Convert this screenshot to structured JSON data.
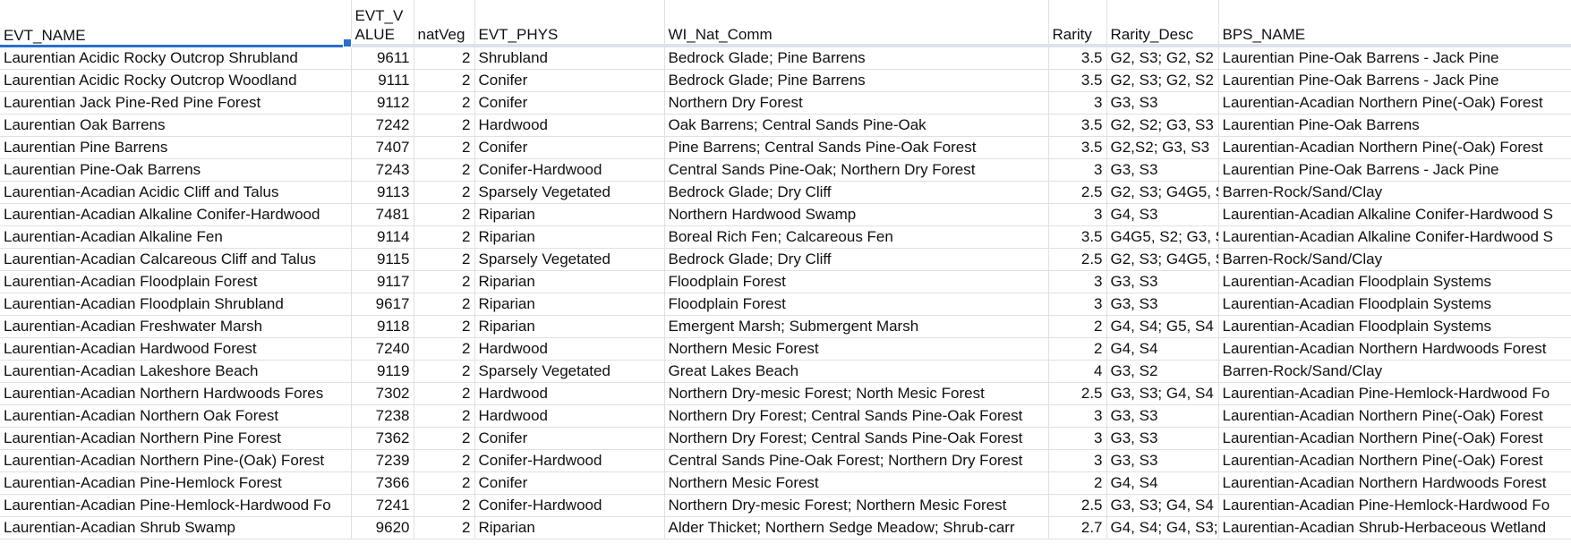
{
  "columns": [
    "EVT_NAME",
    "EVT_VALUE",
    "natVeg",
    "EVT_PHYS",
    "WI_Nat_Comm",
    "Rarity",
    "Rarity_Desc",
    "BPS_NAME"
  ],
  "rows": [
    [
      "Laurentian Acidic Rocky Outcrop Shrubland",
      "9611",
      "2",
      "Shrubland",
      "Bedrock Glade; Pine Barrens",
      "3.5",
      "G2, S3; G2, S2",
      "Laurentian Pine-Oak Barrens - Jack Pine"
    ],
    [
      "Laurentian Acidic Rocky Outcrop Woodland",
      "9111",
      "2",
      "Conifer",
      "Bedrock Glade; Pine Barrens",
      "3.5",
      "G2, S3; G2, S2",
      "Laurentian Pine-Oak Barrens - Jack Pine"
    ],
    [
      "Laurentian Jack Pine-Red Pine Forest",
      "9112",
      "2",
      "Conifer",
      "Northern Dry Forest",
      "3",
      "G3, S3",
      "Laurentian-Acadian Northern Pine(-Oak) Forest"
    ],
    [
      "Laurentian Oak Barrens",
      "7242",
      "2",
      "Hardwood",
      "Oak Barrens; Central Sands Pine-Oak",
      "3.5",
      "G2, S2; G3, S3",
      "Laurentian Pine-Oak Barrens"
    ],
    [
      "Laurentian Pine Barrens",
      "7407",
      "2",
      "Conifer",
      "Pine Barrens; Central Sands Pine-Oak Forest",
      "3.5",
      "G2,S2; G3, S3",
      "Laurentian-Acadian Northern Pine(-Oak) Forest"
    ],
    [
      "Laurentian Pine-Oak Barrens",
      "7243",
      "2",
      "Conifer-Hardwood",
      "Central Sands Pine-Oak; Northern Dry Forest",
      "3",
      "G3, S3",
      "Laurentian Pine-Oak Barrens - Jack Pine"
    ],
    [
      "Laurentian-Acadian Acidic Cliff and Talus",
      "9113",
      "2",
      "Sparsely Vegetated",
      "Bedrock Glade; Dry Cliff",
      "2.5",
      "G2, S3; G4G5, S",
      "Barren-Rock/Sand/Clay"
    ],
    [
      "Laurentian-Acadian Alkaline Conifer-Hardwood",
      "7481",
      "2",
      "Riparian",
      "Northern Hardwood Swamp",
      "3",
      "G4, S3",
      "Laurentian-Acadian Alkaline Conifer-Hardwood S"
    ],
    [
      "Laurentian-Acadian Alkaline Fen",
      "9114",
      "2",
      "Riparian",
      "Boreal Rich Fen; Calcareous Fen",
      "3.5",
      "G4G5, S2; G3, S",
      "Laurentian-Acadian Alkaline Conifer-Hardwood S"
    ],
    [
      "Laurentian-Acadian Calcareous Cliff and Talus",
      "9115",
      "2",
      "Sparsely Vegetated",
      "Bedrock Glade; Dry Cliff",
      "2.5",
      "G2, S3; G4G5, S",
      "Barren-Rock/Sand/Clay"
    ],
    [
      "Laurentian-Acadian Floodplain Forest",
      "9117",
      "2",
      "Riparian",
      "Floodplain Forest",
      "3",
      "G3, S3",
      "Laurentian-Acadian Floodplain Systems"
    ],
    [
      "Laurentian-Acadian Floodplain Shrubland",
      "9617",
      "2",
      "Riparian",
      "Floodplain Forest",
      "3",
      "G3, S3",
      "Laurentian-Acadian Floodplain Systems"
    ],
    [
      "Laurentian-Acadian Freshwater Marsh",
      "9118",
      "2",
      "Riparian",
      "Emergent Marsh; Submergent Marsh",
      "2",
      "G4, S4; G5, S4",
      "Laurentian-Acadian Floodplain Systems"
    ],
    [
      "Laurentian-Acadian Hardwood Forest",
      "7240",
      "2",
      "Hardwood",
      "Northern Mesic Forest",
      "2",
      "G4, S4",
      "Laurentian-Acadian Northern Hardwoods Forest"
    ],
    [
      "Laurentian-Acadian Lakeshore Beach",
      "9119",
      "2",
      "Sparsely Vegetated",
      "Great Lakes Beach",
      "4",
      "G3, S2",
      "Barren-Rock/Sand/Clay"
    ],
    [
      "Laurentian-Acadian Northern Hardwoods Fores",
      "7302",
      "2",
      "Hardwood",
      "Northern Dry-mesic Forest; North Mesic Forest",
      "2.5",
      "G3, S3; G4, S4",
      "Laurentian-Acadian Pine-Hemlock-Hardwood Fo"
    ],
    [
      "Laurentian-Acadian Northern Oak Forest",
      "7238",
      "2",
      "Hardwood",
      "Northern Dry Forest; Central Sands Pine-Oak Forest",
      "3",
      "G3, S3",
      "Laurentian-Acadian Northern Pine(-Oak) Forest"
    ],
    [
      "Laurentian-Acadian Northern Pine Forest",
      "7362",
      "2",
      "Conifer",
      "Northern Dry Forest; Central Sands Pine-Oak Forest",
      "3",
      "G3, S3",
      "Laurentian-Acadian Northern Pine(-Oak) Forest"
    ],
    [
      "Laurentian-Acadian Northern Pine-(Oak) Forest",
      "7239",
      "2",
      "Conifer-Hardwood",
      "Central Sands Pine-Oak Forest; Northern Dry Forest",
      "3",
      "G3, S3",
      "Laurentian-Acadian Northern Pine(-Oak) Forest"
    ],
    [
      "Laurentian-Acadian Pine-Hemlock Forest",
      "7366",
      "2",
      "Conifer",
      "Northern Mesic Forest",
      "2",
      "G4, S4",
      "Laurentian-Acadian Northern Hardwoods Forest"
    ],
    [
      "Laurentian-Acadian Pine-Hemlock-Hardwood Fo",
      "7241",
      "2",
      "Conifer-Hardwood",
      "Northern Dry-mesic Forest; Northern Mesic Forest",
      "2.5",
      "G3, S3; G4, S4",
      "Laurentian-Acadian Pine-Hemlock-Hardwood Fo"
    ],
    [
      "Laurentian-Acadian Shrub Swamp",
      "9620",
      "2",
      "Riparian",
      "Alder Thicket; Northern Sedge Meadow; Shrub-carr",
      "2.7",
      "G4, S4; G4, S3;",
      "Laurentian-Acadian Shrub-Herbaceous Wetland"
    ]
  ],
  "numeric_columns": [
    1,
    2,
    5
  ]
}
